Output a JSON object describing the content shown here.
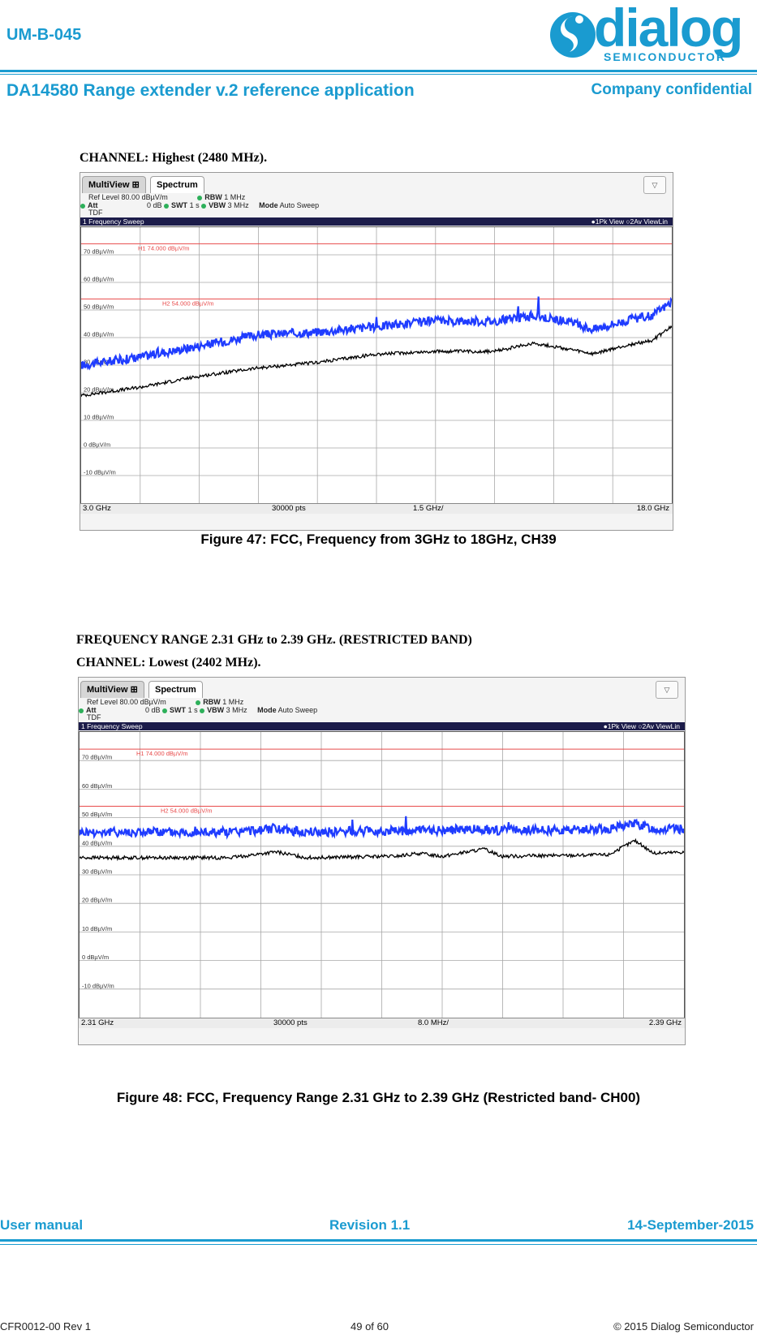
{
  "header": {
    "doc_code": "UM-B-045",
    "doc_title": "DA14580 Range extender v.2 reference application",
    "confidentiality": "Company confidential",
    "logo_word": "dialog",
    "logo_sub": "SEMICONDUCTOR",
    "brand_color": "#1a9bd0"
  },
  "figures": [
    {
      "headings": [
        "CHANNEL: Highest (2480 MHz)."
      ],
      "tabs": {
        "multiview": "MultiView",
        "spectrum": "Spectrum"
      },
      "info": {
        "ref_level_label": "Ref Level",
        "ref_level": "80.00 dBµV/m",
        "att_label": "Att",
        "att": "0 dB",
        "swt_label": "SWT",
        "swt": "1 s",
        "rbw_label": "RBW",
        "rbw": "1 MHz",
        "vbw_label": "VBW",
        "vbw": "3 MHz",
        "mode_label": "Mode",
        "mode": "Auto Sweep",
        "tdf": "TDF"
      },
      "sweep_title": "1 Frequency Sweep",
      "trace_legend": "●1Pk View  ○2Av ViewLin",
      "bottom": {
        "start": "3.0 GHz",
        "points": "30000 pts",
        "span_per_div": "1.5 GHz/",
        "stop": "18.0 GHz"
      },
      "caption": "Figure 47: FCC, Frequency from 3GHz to 18GHz, CH39"
    },
    {
      "headings": [
        "FREQUENCY RANGE 2.31 GHz to 2.39 GHz. (RESTRICTED BAND)",
        "CHANNEL: Lowest (2402 MHz)."
      ],
      "tabs": {
        "multiview": "MultiView",
        "spectrum": "Spectrum"
      },
      "info": {
        "ref_level_label": "Ref Level",
        "ref_level": "80.00 dBµV/m",
        "att_label": "Att",
        "att": "0 dB",
        "swt_label": "SWT",
        "swt": "1 s",
        "rbw_label": "RBW",
        "rbw": "1 MHz",
        "vbw_label": "VBW",
        "vbw": "3 MHz",
        "mode_label": "Mode",
        "mode": "Auto Sweep",
        "tdf": "TDF"
      },
      "sweep_title": "1 Frequency Sweep",
      "trace_legend": "●1Pk View  ○2Av ViewLin",
      "bottom": {
        "start": "2.31 GHz",
        "points": "30000 pts",
        "span_per_div": "8.0 MHz/",
        "stop": "2.39 GHz"
      },
      "caption": "Figure 48: FCC, Frequency Range 2.31 GHz to 2.39 GHz (Restricted band- CH00)"
    }
  ],
  "chart_data": [
    {
      "type": "line",
      "xlim": [
        3.0,
        18.0
      ],
      "ylim": [
        -20,
        80
      ],
      "y_ticks": [
        "70 dBµV/m",
        "60 dBµV/m",
        "50 dBµV/m",
        "40 dBµV/m",
        "30 dBµV/m",
        "20 dBµV/m",
        "10 dBµV/m",
        "0 dBµV/m",
        "-10 dBµV/m"
      ],
      "y_tick_values": [
        70,
        60,
        50,
        40,
        30,
        20,
        10,
        0,
        -10
      ],
      "limit_lines": [
        {
          "label": "H1  74.000 dBµV/m",
          "value": 74,
          "color": "#e84a4a"
        },
        {
          "label": "H2  54.000 dBµV/m",
          "value": 54,
          "color": "#e84a4a"
        }
      ],
      "series": [
        {
          "name": "1Pk View",
          "color": "#1f3cff",
          "x": [
            3.0,
            4.5,
            6.0,
            7.5,
            9.0,
            10.5,
            12.0,
            13.5,
            14.5,
            15.3,
            16.0,
            16.8,
            17.5,
            18.0
          ],
          "values": [
            30,
            33,
            37,
            41,
            42,
            44,
            46,
            46,
            48,
            46,
            43,
            46,
            48,
            53
          ]
        },
        {
          "name": "2Av ViewLin",
          "color": "#000000",
          "x": [
            3.0,
            4.5,
            6.0,
            7.5,
            9.0,
            10.5,
            12.0,
            13.5,
            14.5,
            15.3,
            16.0,
            16.8,
            17.5,
            18.0
          ],
          "values": [
            19,
            22,
            26,
            29,
            31,
            34,
            35,
            35,
            38,
            36,
            34,
            37,
            39,
            44
          ]
        }
      ]
    },
    {
      "type": "line",
      "xlim": [
        2.31,
        2.39
      ],
      "ylim": [
        -20,
        80
      ],
      "y_ticks": [
        "70 dBµV/m",
        "60 dBµV/m",
        "50 dBµV/m",
        "40 dBµV/m",
        "30 dBµV/m",
        "20 dBµV/m",
        "10 dBµV/m",
        "0 dBµV/m",
        "-10 dBµV/m"
      ],
      "y_tick_values": [
        70,
        60,
        50,
        40,
        30,
        20,
        10,
        0,
        -10
      ],
      "limit_lines": [
        {
          "label": "H1  74.000 dBµV/m",
          "value": 74,
          "color": "#e84a4a"
        },
        {
          "label": "H2  54.000 dBµV/m",
          "value": 54,
          "color": "#e84a4a"
        }
      ],
      "series": [
        {
          "name": "1Pk View",
          "color": "#1f3cff",
          "x": [
            2.31,
            2.33,
            2.336,
            2.34,
            2.355,
            2.3635,
            2.366,
            2.38,
            2.3835,
            2.386,
            2.39
          ],
          "values": [
            45,
            45,
            46,
            45,
            45.5,
            46,
            45.5,
            46,
            48,
            46,
            46
          ]
        },
        {
          "name": "2Av ViewLin",
          "color": "#000000",
          "x": [
            2.31,
            2.33,
            2.336,
            2.34,
            2.352,
            2.355,
            2.358,
            2.3635,
            2.366,
            2.38,
            2.3835,
            2.386,
            2.39
          ],
          "values": [
            36,
            36,
            38,
            36,
            36.5,
            37.5,
            36.5,
            39,
            36.5,
            37,
            42,
            37.5,
            38
          ]
        }
      ]
    }
  ],
  "footer": {
    "left": "User manual",
    "center": "Revision 1.1",
    "right": "14-September-2015",
    "doc_ref": "CFR0012-00 Rev 1",
    "page": "49 of 60",
    "copyright": "© 2015 Dialog Semiconductor"
  }
}
